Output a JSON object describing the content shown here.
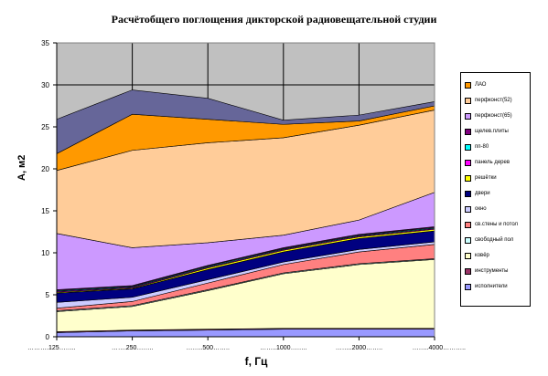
{
  "chart_data": {
    "type": "area",
    "stacked": true,
    "title": "Расчётобщего поглощения дикторской радиовещательной студии",
    "xlabel": "f, Гц",
    "ylabel": "A, м2",
    "categories": [
      "……….125……..",
      "…….250……..",
      "……..500……..",
      "……..1000……..",
      "……..2000……..",
      "……..4000……….."
    ],
    "ylim": [
      0,
      35
    ],
    "yticks": [
      "0",
      "5",
      "10",
      "15",
      "20",
      "25",
      "30",
      "35"
    ],
    "grid": true,
    "plot_background": "#C0C0C0",
    "legend_position": "right",
    "series": [
      {
        "name": "исполнители",
        "color": "#9999FF",
        "values": [
          0.5,
          0.7,
          0.8,
          0.9,
          0.9,
          0.9
        ]
      },
      {
        "name": "инструменты",
        "color": "#993366",
        "values": [
          0.1,
          0.1,
          0.1,
          0.1,
          0.1,
          0.1
        ]
      },
      {
        "name": "ковёр",
        "color": "#FFFFCC",
        "values": [
          2.4,
          2.8,
          4.6,
          6.5,
          7.6,
          8.2
        ]
      },
      {
        "name": "свободный пол",
        "color": "#CCFFFF",
        "values": [
          0.1,
          0.1,
          0.1,
          0.1,
          0.1,
          0.1
        ]
      },
      {
        "name": "св.стены и потол",
        "color": "#FF8080",
        "values": [
          0.3,
          0.5,
          0.8,
          1.0,
          1.4,
          1.7
        ]
      },
      {
        "name": "окно",
        "color": "#CCCCFF",
        "values": [
          0.7,
          0.5,
          0.4,
          0.3,
          0.3,
          0.3
        ]
      },
      {
        "name": "двери",
        "color": "#000080",
        "values": [
          1.1,
          1.0,
          1.2,
          1.2,
          1.3,
          1.3
        ]
      },
      {
        "name": "решётки",
        "color": "#FFFF00",
        "values": [
          0.1,
          0.1,
          0.2,
          0.2,
          0.2,
          0.2
        ]
      },
      {
        "name": "панель дерев",
        "color": "#FF00FF",
        "values": [
          0.1,
          0.1,
          0.1,
          0.1,
          0.1,
          0.1
        ]
      },
      {
        "name": "пп-80",
        "color": "#00FFFF",
        "values": [
          0.1,
          0.1,
          0.1,
          0.1,
          0.1,
          0.1
        ]
      },
      {
        "name": "щелев.плиты",
        "color": "#800080",
        "values": [
          0.1,
          0.1,
          0.1,
          0.1,
          0.1,
          0.1
        ]
      },
      {
        "name": "перфконст(65)",
        "color": "#CC99FF",
        "values": [
          6.7,
          4.5,
          2.7,
          1.5,
          1.7,
          4.1
        ]
      },
      {
        "name": "перфконст(52)",
        "color": "#FFCC99",
        "values": [
          7.5,
          11.6,
          11.9,
          11.6,
          11.3,
          9.8
        ]
      },
      {
        "name": "ЛАО",
        "color": "#FF9900",
        "values": [
          2.0,
          4.3,
          2.8,
          1.6,
          0.5,
          0.5
        ]
      },
      {
        "name": "",
        "color": "#666699",
        "values": [
          4.1,
          2.9,
          2.5,
          0.5,
          0.7,
          0.5
        ]
      }
    ]
  }
}
